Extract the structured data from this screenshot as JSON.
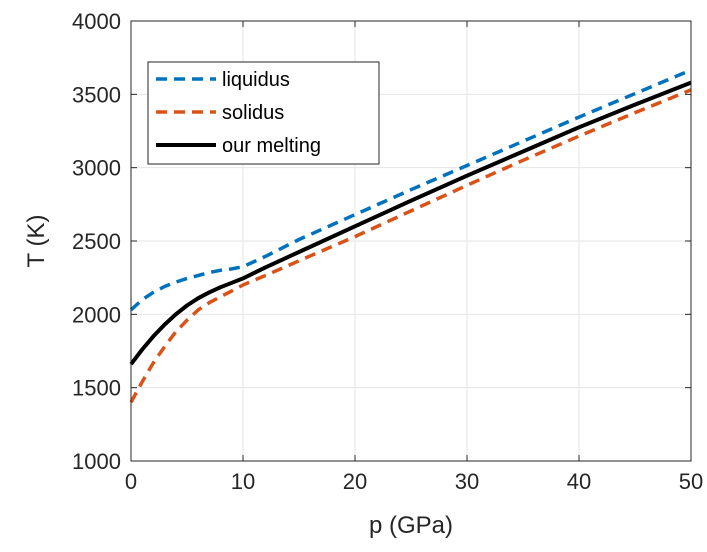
{
  "chart_data": {
    "type": "line",
    "xlabel": "p (GPa)",
    "ylabel": "T (K)",
    "xlim": [
      0,
      50
    ],
    "ylim": [
      1000,
      4000
    ],
    "xticks": [
      0,
      10,
      20,
      30,
      40,
      50
    ],
    "yticks": [
      1000,
      1500,
      2000,
      2500,
      3000,
      3500,
      4000
    ],
    "grid": true,
    "legend_position": "top-left",
    "series": [
      {
        "name": "liquidus",
        "style": "dashed",
        "color": "#0072BD",
        "x": [
          0,
          1,
          2,
          3,
          4,
          5,
          6,
          7,
          8,
          9,
          10,
          12,
          15,
          20,
          25,
          30,
          35,
          40,
          45,
          50
        ],
        "y": [
          2030,
          2100,
          2150,
          2190,
          2220,
          2245,
          2265,
          2285,
          2300,
          2310,
          2325,
          2395,
          2510,
          2680,
          2850,
          3015,
          3180,
          3345,
          3505,
          3665
        ]
      },
      {
        "name": "solidus",
        "style": "dashed",
        "color": "#D95319",
        "x": [
          0,
          1,
          2,
          3,
          4,
          5,
          6,
          7,
          8,
          9,
          10,
          12,
          15,
          20,
          25,
          30,
          35,
          40,
          45,
          50
        ],
        "y": [
          1400,
          1540,
          1670,
          1780,
          1880,
          1960,
          2030,
          2080,
          2120,
          2160,
          2200,
          2265,
          2365,
          2530,
          2705,
          2880,
          3050,
          3215,
          3375,
          3530
        ]
      },
      {
        "name": "our melting",
        "style": "solid",
        "color": "#000000",
        "x": [
          0,
          1,
          2,
          3,
          4,
          5,
          6,
          7,
          8,
          9,
          10,
          12,
          15,
          20,
          25,
          30,
          35,
          40,
          45,
          50
        ],
        "y": [
          1660,
          1760,
          1850,
          1930,
          2000,
          2060,
          2110,
          2150,
          2185,
          2215,
          2245,
          2320,
          2425,
          2600,
          2775,
          2945,
          3110,
          3275,
          3430,
          3580
        ]
      }
    ]
  }
}
